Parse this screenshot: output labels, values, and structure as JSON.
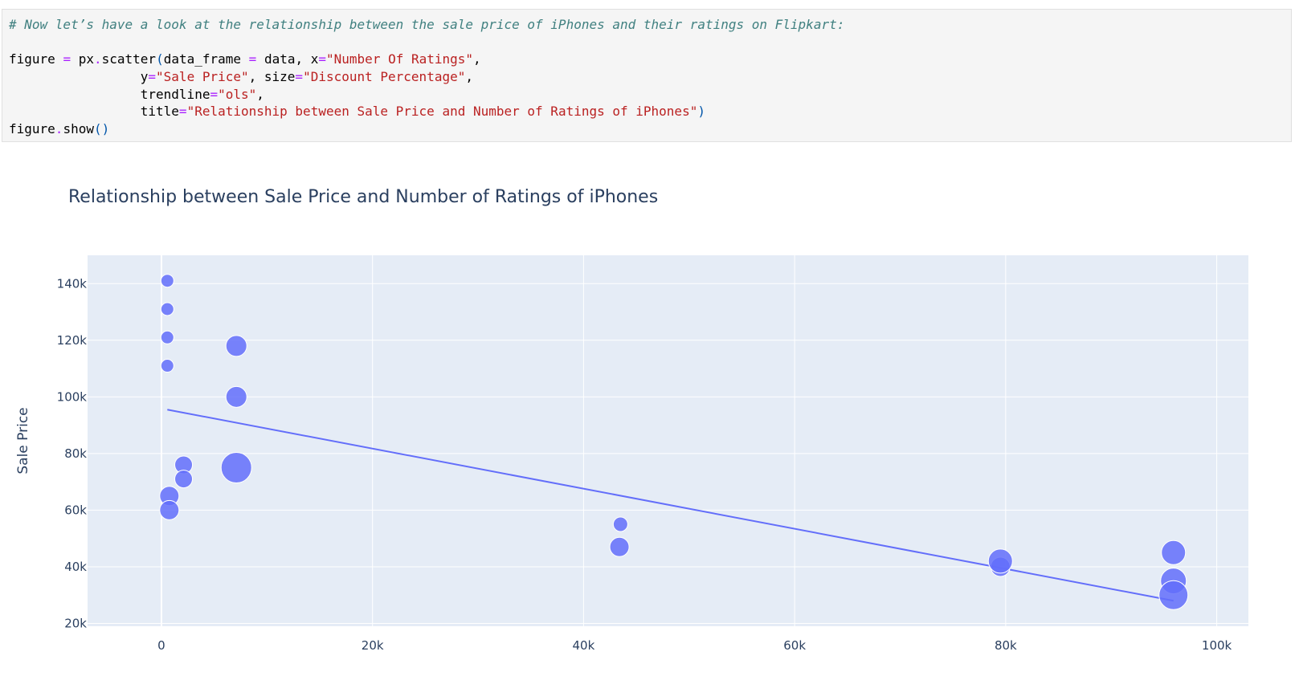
{
  "code": {
    "line1": "# Now let’s have a look at the relationship between the sale price of iPhones and their ratings on Flipkart:",
    "line3": {
      "pre": "figure ",
      "eq": "=",
      "mid": " px",
      "dot": ".",
      "mid2": "scatter",
      "lp": "(",
      "a1": "data_frame ",
      "eq2": "=",
      "a2": " data, x",
      "eq3": "=",
      "s1": "\"Number Of Ratings\"",
      "end": ","
    },
    "line4": {
      "pre": "                 y",
      "eq": "=",
      "s1": "\"Sale Price\"",
      "mid": ", size",
      "eq2": "=",
      "s2": "\"Discount Percentage\"",
      "end": ","
    },
    "line5": {
      "pre": "                 trendline",
      "eq": "=",
      "s1": "\"ols\"",
      "end": ","
    },
    "line6": {
      "pre": "                 title",
      "eq": "=",
      "s1": "\"Relationship between Sale Price and Number of Ratings of iPhones\"",
      "end": ")"
    },
    "line7": {
      "pre": "figure",
      "dot": ".",
      "mid": "show",
      "par": "()"
    }
  },
  "chart_data": {
    "type": "scatter",
    "title": "Relationship between Sale Price and Number of Ratings of iPhones",
    "xlabel": "",
    "ylabel": "Sale Price",
    "xlim": [
      -7000,
      103000
    ],
    "ylim": [
      19000,
      150000
    ],
    "xticks": [
      0,
      20000,
      40000,
      60000,
      80000,
      100000
    ],
    "xtick_labels": [
      "0",
      "20k",
      "40k",
      "60k",
      "80k",
      "100k"
    ],
    "yticks": [
      20000,
      40000,
      60000,
      80000,
      100000,
      120000,
      140000
    ],
    "ytick_labels": [
      "20k",
      "40k",
      "60k",
      "80k",
      "100k",
      "120k",
      "140k"
    ],
    "grid": true,
    "colors": {
      "marker": "#636efa",
      "plot_bg": "#e5ecf6",
      "grid": "#ffffff",
      "text": "#2a3f5f"
    },
    "points": [
      {
        "x": 560,
        "y": 141000,
        "size": 8
      },
      {
        "x": 560,
        "y": 131000,
        "size": 8
      },
      {
        "x": 560,
        "y": 121000,
        "size": 8
      },
      {
        "x": 560,
        "y": 111000,
        "size": 8
      },
      {
        "x": 7100,
        "y": 118000,
        "size": 13
      },
      {
        "x": 7100,
        "y": 100000,
        "size": 13
      },
      {
        "x": 7100,
        "y": 75000,
        "size": 19
      },
      {
        "x": 2100,
        "y": 76000,
        "size": 11
      },
      {
        "x": 2100,
        "y": 71000,
        "size": 11
      },
      {
        "x": 750,
        "y": 65000,
        "size": 12
      },
      {
        "x": 750,
        "y": 60000,
        "size": 12
      },
      {
        "x": 43500,
        "y": 55000,
        "size": 9
      },
      {
        "x": 43400,
        "y": 47000,
        "size": 12
      },
      {
        "x": 79500,
        "y": 40000,
        "size": 12
      },
      {
        "x": 79500,
        "y": 42000,
        "size": 15
      },
      {
        "x": 95900,
        "y": 45000,
        "size": 15
      },
      {
        "x": 95900,
        "y": 35000,
        "size": 16
      },
      {
        "x": 95900,
        "y": 30000,
        "size": 18
      }
    ],
    "trendline": {
      "x": [
        560,
        95900
      ],
      "y": [
        95500,
        28000
      ]
    }
  }
}
